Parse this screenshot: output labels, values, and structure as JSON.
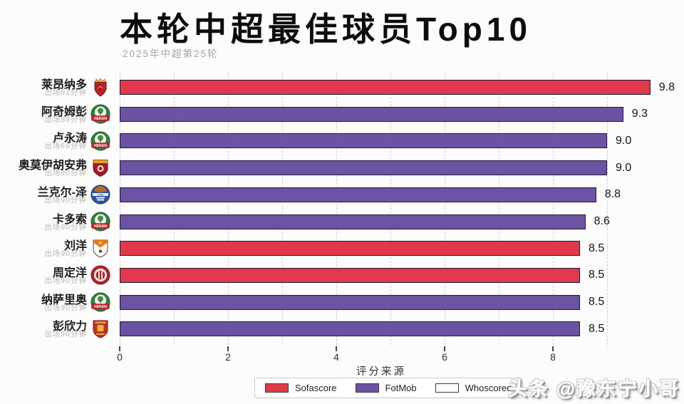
{
  "title": "本轮中超最佳球员Top10",
  "subtitle": "2025年中超第25轮",
  "watermark": "头条 @豫东宁小哥",
  "colors": {
    "background": "#fcfcfc",
    "sofascore_red": "#e1394a",
    "fotmob_purple": "#6b52a3",
    "whoscored_white": "#ffffff",
    "bar_edge": "#1c1c34",
    "gridline": "#cfcfcf"
  },
  "chart_data": {
    "type": "bar",
    "orientation": "horizontal",
    "title": "本轮中超最佳球员Top10",
    "subtitle": "2025年中超第25轮",
    "xlabel": "评分来源",
    "ylabel": "",
    "xlim": [
      0,
      10
    ],
    "xticks": [
      0,
      2,
      4,
      6,
      8
    ],
    "grid": "vertical dashed lines at every integer 0-9",
    "legend_position": "bottom-center",
    "legend": [
      {
        "label": "Sofascore",
        "color": "#e1394a"
      },
      {
        "label": "FotMob",
        "color": "#6b52a3"
      },
      {
        "label": "Whoscored",
        "color": "#ffffff"
      }
    ],
    "players": [
      {
        "name": "莱昂纳多",
        "minutes": "出场81分钟",
        "value": 9.8,
        "source": "Sofascore",
        "badge": {
          "icon": "club-badge-red-shield-gold-crown",
          "type": "crown-shield"
        }
      },
      {
        "name": "阿奇姆彭",
        "minutes": "出场83分钟",
        "value": 9.3,
        "source": "FotMob",
        "badge": {
          "icon": "club-badge-green-circle-henan",
          "type": "henan",
          "text": "HENAN"
        }
      },
      {
        "name": "卢永涛",
        "minutes": "出场68分钟",
        "value": 9.0,
        "source": "FotMob",
        "badge": {
          "icon": "club-badge-green-circle-henan",
          "type": "henan",
          "text": "HENAN"
        }
      },
      {
        "name": "奥莫伊胡安弗",
        "minutes": "出场90分钟",
        "value": 9.0,
        "source": "FotMob",
        "badge": {
          "icon": "club-badge-maroon-shield-gold-band",
          "type": "maroon-shield"
        }
      },
      {
        "name": "兰克尔-泽",
        "minutes": "出场90分钟",
        "value": 8.8,
        "source": "FotMob",
        "badge": {
          "icon": "club-badge-blue-circle-globe",
          "type": "blue-circle"
        }
      },
      {
        "name": "卡多索",
        "minutes": "出场90分钟",
        "value": 8.6,
        "source": "FotMob",
        "badge": {
          "icon": "club-badge-green-circle-henan",
          "type": "henan",
          "text": "HENAN"
        }
      },
      {
        "name": "刘洋",
        "minutes": "出场90分钟",
        "value": 8.5,
        "source": "Sofascore",
        "badge": {
          "icon": "club-badge-white-shield-orange-peak",
          "type": "white-shield"
        }
      },
      {
        "name": "周定洋",
        "minutes": "出场90分钟",
        "value": 8.5,
        "source": "Sofascore",
        "badge": {
          "icon": "club-badge-red-ring-circle",
          "type": "red-ring"
        }
      },
      {
        "name": "纳萨里奥",
        "minutes": "出场90分钟",
        "value": 8.5,
        "source": "FotMob",
        "badge": {
          "icon": "club-badge-green-circle-henan",
          "type": "henan",
          "text": "HENAN"
        }
      },
      {
        "name": "彭欣力",
        "minutes": "出场90分钟",
        "value": 8.5,
        "source": "FotMob",
        "badge": {
          "icon": "club-badge-red-shield-gold-crest",
          "type": "red-shield-gold"
        }
      }
    ]
  }
}
